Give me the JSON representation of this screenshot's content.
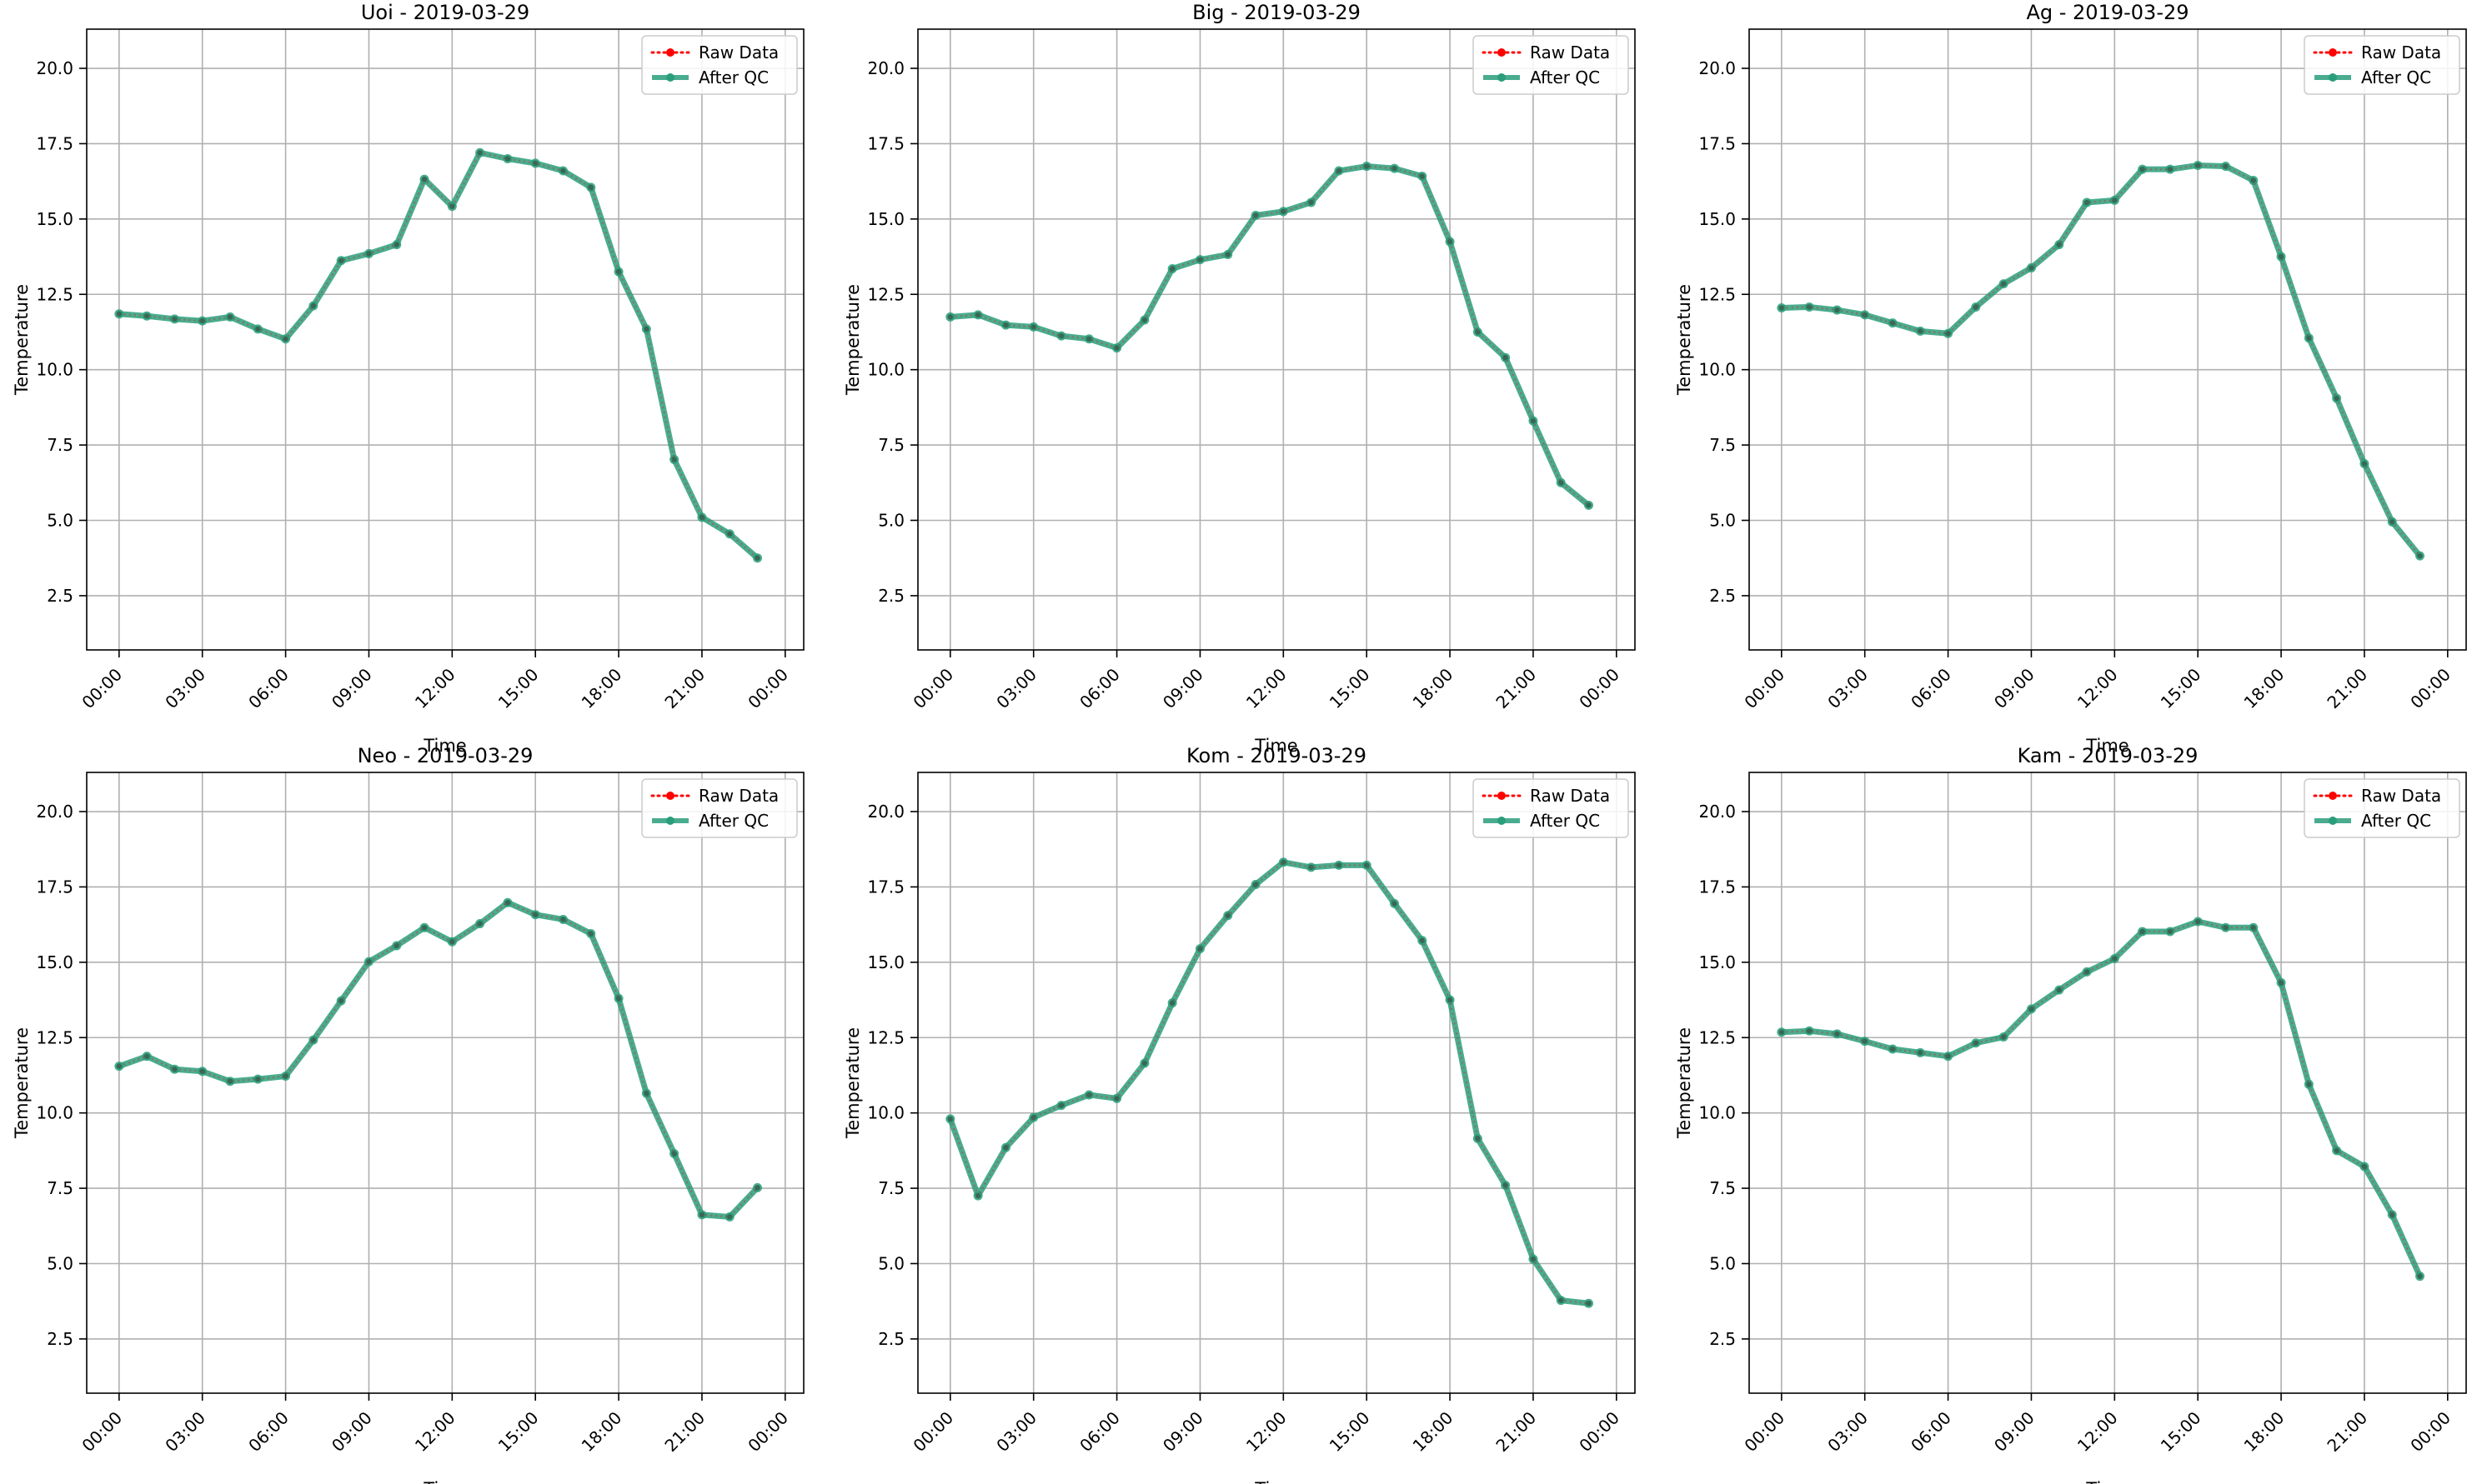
{
  "colors": {
    "raw": "#ff0000",
    "qc": "#2a9d7b",
    "grid": "#b0b0b0",
    "axis": "#000000"
  },
  "legend": {
    "raw_label": "Raw Data",
    "qc_label": "After QC",
    "position": "top-right"
  },
  "chart_data": [
    {
      "type": "line",
      "title": "Uoi - 2019-03-29",
      "xlabel": "Time",
      "ylabel": "Temperature",
      "xlim": [
        "2019-03-28 22:50",
        "2019-03-30 00:40"
      ],
      "ylim": [
        0.7,
        21.3
      ],
      "x_ticks": [
        "00:00",
        "03:00",
        "06:00",
        "09:00",
        "12:00",
        "15:00",
        "18:00",
        "21:00",
        "00:00"
      ],
      "y_ticks": [
        "2.5",
        "5.0",
        "7.5",
        "10.0",
        "12.5",
        "15.0",
        "17.5",
        "20.0"
      ],
      "grid": true,
      "x": [
        "00:00",
        "01:00",
        "02:00",
        "03:00",
        "04:00",
        "05:00",
        "06:00",
        "07:00",
        "08:00",
        "09:00",
        "10:00",
        "11:00",
        "12:00",
        "13:00",
        "14:00",
        "15:00",
        "16:00",
        "17:00",
        "18:00",
        "19:00",
        "20:00",
        "21:00",
        "22:00",
        "23:00"
      ],
      "series": [
        {
          "name": "Raw Data",
          "values": [
            11.85,
            11.78,
            11.68,
            11.62,
            11.75,
            11.35,
            11.02,
            12.12,
            13.62,
            13.85,
            14.15,
            16.32,
            15.42,
            17.2,
            17.0,
            16.85,
            16.6,
            16.05,
            13.25,
            11.35,
            7.02,
            5.1,
            4.55,
            3.75
          ]
        },
        {
          "name": "After QC",
          "values": [
            11.85,
            11.78,
            11.68,
            11.62,
            11.75,
            11.35,
            11.02,
            12.12,
            13.62,
            13.85,
            14.15,
            16.32,
            15.42,
            17.2,
            17.0,
            16.85,
            16.6,
            16.05,
            13.25,
            11.35,
            7.02,
            5.1,
            4.55,
            3.75
          ]
        }
      ]
    },
    {
      "type": "line",
      "title": "Big - 2019-03-29",
      "xlabel": "Time",
      "ylabel": "Temperature",
      "xlim": [
        "2019-03-28 22:50",
        "2019-03-30 00:40"
      ],
      "ylim": [
        0.7,
        21.3
      ],
      "x_ticks": [
        "00:00",
        "03:00",
        "06:00",
        "09:00",
        "12:00",
        "15:00",
        "18:00",
        "21:00",
        "00:00"
      ],
      "y_ticks": [
        "2.5",
        "5.0",
        "7.5",
        "10.0",
        "12.5",
        "15.0",
        "17.5",
        "20.0"
      ],
      "grid": true,
      "x": [
        "00:00",
        "01:00",
        "02:00",
        "03:00",
        "04:00",
        "05:00",
        "06:00",
        "07:00",
        "08:00",
        "09:00",
        "10:00",
        "11:00",
        "12:00",
        "13:00",
        "14:00",
        "15:00",
        "16:00",
        "17:00",
        "18:00",
        "19:00",
        "20:00",
        "21:00",
        "22:00",
        "23:00"
      ],
      "series": [
        {
          "name": "Raw Data",
          "values": [
            11.75,
            11.82,
            11.48,
            11.42,
            11.12,
            11.02,
            10.72,
            11.65,
            13.35,
            13.65,
            13.82,
            15.12,
            15.25,
            15.55,
            16.6,
            16.75,
            16.68,
            16.42,
            14.25,
            11.25,
            10.4,
            8.3,
            6.25,
            5.5
          ]
        },
        {
          "name": "After QC",
          "values": [
            11.75,
            11.82,
            11.48,
            11.42,
            11.12,
            11.02,
            10.72,
            11.65,
            13.35,
            13.65,
            13.82,
            15.12,
            15.25,
            15.55,
            16.6,
            16.75,
            16.68,
            16.42,
            14.25,
            11.25,
            10.4,
            8.3,
            6.25,
            5.5
          ]
        }
      ]
    },
    {
      "type": "line",
      "title": "Ag - 2019-03-29",
      "xlabel": "Time",
      "ylabel": "Temperature",
      "xlim": [
        "2019-03-28 22:50",
        "2019-03-30 00:40"
      ],
      "ylim": [
        0.7,
        21.3
      ],
      "x_ticks": [
        "00:00",
        "03:00",
        "06:00",
        "09:00",
        "12:00",
        "15:00",
        "18:00",
        "21:00",
        "00:00"
      ],
      "y_ticks": [
        "2.5",
        "5.0",
        "7.5",
        "10.0",
        "12.5",
        "15.0",
        "17.5",
        "20.0"
      ],
      "grid": true,
      "x": [
        "00:00",
        "01:00",
        "02:00",
        "03:00",
        "04:00",
        "05:00",
        "06:00",
        "07:00",
        "08:00",
        "09:00",
        "10:00",
        "11:00",
        "12:00",
        "13:00",
        "14:00",
        "15:00",
        "16:00",
        "17:00",
        "18:00",
        "19:00",
        "20:00",
        "21:00",
        "22:00",
        "23:00"
      ],
      "series": [
        {
          "name": "Raw Data",
          "values": [
            12.05,
            12.08,
            11.98,
            11.82,
            11.55,
            11.28,
            11.2,
            12.08,
            12.85,
            13.38,
            14.15,
            15.55,
            15.62,
            16.65,
            16.65,
            16.78,
            16.75,
            16.28,
            13.75,
            11.05,
            9.05,
            6.88,
            4.95,
            3.82
          ]
        },
        {
          "name": "After QC",
          "values": [
            12.05,
            12.08,
            11.98,
            11.82,
            11.55,
            11.28,
            11.2,
            12.08,
            12.85,
            13.38,
            14.15,
            15.55,
            15.62,
            16.65,
            16.65,
            16.78,
            16.75,
            16.28,
            13.75,
            11.05,
            9.05,
            6.88,
            4.95,
            3.82
          ]
        }
      ]
    },
    {
      "type": "line",
      "title": "Neo - 2019-03-29",
      "xlabel": "Time",
      "ylabel": "Temperature",
      "xlim": [
        "2019-03-28 22:50",
        "2019-03-30 00:40"
      ],
      "ylim": [
        0.7,
        21.3
      ],
      "x_ticks": [
        "00:00",
        "03:00",
        "06:00",
        "09:00",
        "12:00",
        "15:00",
        "18:00",
        "21:00",
        "00:00"
      ],
      "y_ticks": [
        "2.5",
        "5.0",
        "7.5",
        "10.0",
        "12.5",
        "15.0",
        "17.5",
        "20.0"
      ],
      "grid": true,
      "x": [
        "00:00",
        "01:00",
        "02:00",
        "03:00",
        "04:00",
        "05:00",
        "06:00",
        "07:00",
        "08:00",
        "09:00",
        "10:00",
        "11:00",
        "12:00",
        "13:00",
        "14:00",
        "15:00",
        "16:00",
        "17:00",
        "18:00",
        "19:00",
        "20:00",
        "21:00",
        "22:00",
        "23:00"
      ],
      "series": [
        {
          "name": "Raw Data",
          "values": [
            11.55,
            11.88,
            11.45,
            11.38,
            11.05,
            11.12,
            11.22,
            12.42,
            13.72,
            15.02,
            15.55,
            16.15,
            15.68,
            16.28,
            16.98,
            16.58,
            16.42,
            15.95,
            13.8,
            10.65,
            8.65,
            6.62,
            6.55,
            7.52
          ]
        },
        {
          "name": "After QC",
          "values": [
            11.55,
            11.88,
            11.45,
            11.38,
            11.05,
            11.12,
            11.22,
            12.42,
            13.72,
            15.02,
            15.55,
            16.15,
            15.68,
            16.28,
            16.98,
            16.58,
            16.42,
            15.95,
            13.8,
            10.65,
            8.65,
            6.62,
            6.55,
            7.52
          ]
        }
      ]
    },
    {
      "type": "line",
      "title": "Kom - 2019-03-29",
      "xlabel": "Time",
      "ylabel": "Temperature",
      "xlim": [
        "2019-03-28 22:50",
        "2019-03-30 00:40"
      ],
      "ylim": [
        0.7,
        21.3
      ],
      "x_ticks": [
        "00:00",
        "03:00",
        "06:00",
        "09:00",
        "12:00",
        "15:00",
        "18:00",
        "21:00",
        "00:00"
      ],
      "y_ticks": [
        "2.5",
        "5.0",
        "7.5",
        "10.0",
        "12.5",
        "15.0",
        "17.5",
        "20.0"
      ],
      "grid": true,
      "x": [
        "00:00",
        "01:00",
        "02:00",
        "03:00",
        "04:00",
        "05:00",
        "06:00",
        "07:00",
        "08:00",
        "09:00",
        "10:00",
        "11:00",
        "12:00",
        "13:00",
        "14:00",
        "15:00",
        "16:00",
        "17:00",
        "18:00",
        "19:00",
        "20:00",
        "21:00",
        "22:00",
        "23:00"
      ],
      "series": [
        {
          "name": "Raw Data",
          "values": [
            9.8,
            7.25,
            8.85,
            9.85,
            10.25,
            10.6,
            10.48,
            11.65,
            13.65,
            15.45,
            16.55,
            17.58,
            18.32,
            18.15,
            18.22,
            18.22,
            16.95,
            15.72,
            13.75,
            9.15,
            7.6,
            5.15,
            3.78,
            3.68
          ]
        },
        {
          "name": "After QC",
          "values": [
            9.8,
            7.25,
            8.85,
            9.85,
            10.25,
            10.6,
            10.48,
            11.65,
            13.65,
            15.45,
            16.55,
            17.58,
            18.32,
            18.15,
            18.22,
            18.22,
            16.95,
            15.72,
            13.75,
            9.15,
            7.6,
            5.15,
            3.78,
            3.68
          ]
        }
      ]
    },
    {
      "type": "line",
      "title": "Kam - 2019-03-29",
      "xlabel": "Time",
      "ylabel": "Temperature",
      "xlim": [
        "2019-03-28 22:50",
        "2019-03-30 00:40"
      ],
      "ylim": [
        0.7,
        21.3
      ],
      "x_ticks": [
        "00:00",
        "03:00",
        "06:00",
        "09:00",
        "12:00",
        "15:00",
        "18:00",
        "21:00",
        "00:00"
      ],
      "y_ticks": [
        "2.5",
        "5.0",
        "7.5",
        "10.0",
        "12.5",
        "15.0",
        "17.5",
        "20.0"
      ],
      "grid": true,
      "x": [
        "00:00",
        "01:00",
        "02:00",
        "03:00",
        "04:00",
        "05:00",
        "06:00",
        "07:00",
        "08:00",
        "09:00",
        "10:00",
        "11:00",
        "12:00",
        "13:00",
        "14:00",
        "15:00",
        "16:00",
        "17:00",
        "18:00",
        "19:00",
        "20:00",
        "21:00",
        "22:00",
        "23:00"
      ],
      "series": [
        {
          "name": "Raw Data",
          "values": [
            12.68,
            12.72,
            12.62,
            12.38,
            12.12,
            12.0,
            11.88,
            12.32,
            12.52,
            13.45,
            14.08,
            14.68,
            15.12,
            16.02,
            16.02,
            16.35,
            16.15,
            16.15,
            14.32,
            10.95,
            8.75,
            8.22,
            6.62,
            4.58
          ]
        },
        {
          "name": "After QC",
          "values": [
            12.68,
            12.72,
            12.62,
            12.38,
            12.12,
            12.0,
            11.88,
            12.32,
            12.52,
            13.45,
            14.08,
            14.68,
            15.12,
            16.02,
            16.02,
            16.35,
            16.15,
            16.15,
            14.32,
            10.95,
            8.75,
            8.22,
            6.62,
            4.58
          ]
        }
      ]
    }
  ]
}
